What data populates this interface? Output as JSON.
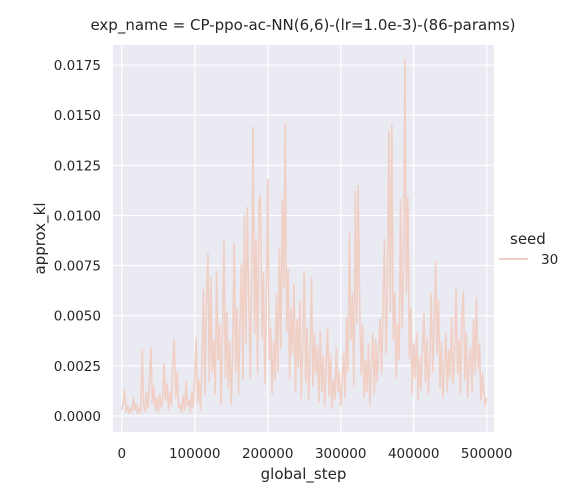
{
  "colors": {
    "plot_background": "#eaeaf2",
    "grid": "#ffffff",
    "series": "#f0cfc5",
    "text": "#262626"
  },
  "chart_data": {
    "type": "line",
    "title": "exp_name = CP-ppo-ac-NN(6,6)-(lr=1.0e-3)-(86-params)",
    "xlabel": "global_step",
    "ylabel": "approx_kl",
    "xlim": [
      -12000,
      510000
    ],
    "ylim": [
      -0.0008,
      0.0185
    ],
    "grid": true,
    "legend_placement": "right",
    "legend_title": "seed",
    "x_ticks": [
      0,
      100000,
      200000,
      300000,
      400000,
      500000
    ],
    "x_tick_labels": [
      "0",
      "100000",
      "200000",
      "300000",
      "400000",
      "500000"
    ],
    "y_ticks": [
      0,
      0.0025,
      0.005,
      0.0075,
      0.01,
      0.0125,
      0.015,
      0.0175
    ],
    "y_tick_labels": [
      "0.0000",
      "0.0025",
      "0.0050",
      "0.0075",
      "0.0100",
      "0.0125",
      "0.0150",
      "0.0175"
    ],
    "series": [
      {
        "name": "30",
        "color": "#f0cfc5",
        "points": [
          [
            0,
            0.0003
          ],
          [
            2000,
            0.0007
          ],
          [
            4000,
            0.0013
          ],
          [
            6000,
            0.0002
          ],
          [
            8000,
            0.0005
          ],
          [
            10000,
            0.0001
          ],
          [
            12000,
            0.0004
          ],
          [
            14000,
            0.0002
          ],
          [
            16000,
            0.0009
          ],
          [
            18000,
            0.0003
          ],
          [
            20000,
            0.0006
          ],
          [
            22000,
            0.0001
          ],
          [
            24000,
            0.0004
          ],
          [
            26000,
            0.0002
          ],
          [
            28000,
            0.0033
          ],
          [
            30000,
            0.0005
          ],
          [
            32000,
            0.0002
          ],
          [
            34000,
            0.0012
          ],
          [
            36000,
            0.0004
          ],
          [
            38000,
            0.0018
          ],
          [
            40000,
            0.0034
          ],
          [
            42000,
            0.0006
          ],
          [
            44000,
            0.0015
          ],
          [
            46000,
            0.0003
          ],
          [
            48000,
            0.0009
          ],
          [
            50000,
            0.0002
          ],
          [
            52000,
            0.0011
          ],
          [
            54000,
            0.0004
          ],
          [
            56000,
            0.0007
          ],
          [
            58000,
            0.0026
          ],
          [
            60000,
            0.0008
          ],
          [
            62000,
            0.0016
          ],
          [
            64000,
            0.0003
          ],
          [
            66000,
            0.0012
          ],
          [
            68000,
            0.0005
          ],
          [
            70000,
            0.0028
          ],
          [
            72000,
            0.0038
          ],
          [
            74000,
            0.0009
          ],
          [
            76000,
            0.0022
          ],
          [
            78000,
            0.0004
          ],
          [
            80000,
            0.0006
          ],
          [
            82000,
            0.0002
          ],
          [
            84000,
            0.001
          ],
          [
            86000,
            0.0003
          ],
          [
            88000,
            0.0017
          ],
          [
            90000,
            0.0005
          ],
          [
            92000,
            0.0008
          ],
          [
            94000,
            0.0002
          ],
          [
            96000,
            0.0012
          ],
          [
            98000,
            0.0004
          ],
          [
            100000,
            0.002
          ],
          [
            102000,
            0.0039
          ],
          [
            104000,
            0.0007
          ],
          [
            106000,
            0.0018
          ],
          [
            108000,
            0.0003
          ],
          [
            110000,
            0.0029
          ],
          [
            112000,
            0.0063
          ],
          [
            114000,
            0.0011
          ],
          [
            116000,
            0.0056
          ],
          [
            118000,
            0.0081
          ],
          [
            120000,
            0.0017
          ],
          [
            122000,
            0.0069
          ],
          [
            124000,
            0.0022
          ],
          [
            126000,
            0.0038
          ],
          [
            128000,
            0.0011
          ],
          [
            130000,
            0.0072
          ],
          [
            132000,
            0.0028
          ],
          [
            134000,
            0.0045
          ],
          [
            136000,
            0.0006
          ],
          [
            138000,
            0.0041
          ],
          [
            140000,
            0.0087
          ],
          [
            142000,
            0.0019
          ],
          [
            144000,
            0.0052
          ],
          [
            146000,
            0.0014
          ],
          [
            148000,
            0.0037
          ],
          [
            150000,
            0.0006
          ],
          [
            152000,
            0.0033
          ],
          [
            154000,
            0.0086
          ],
          [
            156000,
            0.0022
          ],
          [
            158000,
            0.0054
          ],
          [
            160000,
            0.0011
          ],
          [
            162000,
            0.0048
          ],
          [
            164000,
            0.0076
          ],
          [
            166000,
            0.0018
          ],
          [
            168000,
            0.01
          ],
          [
            170000,
            0.0036
          ],
          [
            172000,
            0.0104
          ],
          [
            174000,
            0.0062
          ],
          [
            176000,
            0.0019
          ],
          [
            178000,
            0.0068
          ],
          [
            180000,
            0.0144
          ],
          [
            182000,
            0.0041
          ],
          [
            184000,
            0.0088
          ],
          [
            186000,
            0.0021
          ],
          [
            188000,
            0.0107
          ],
          [
            190000,
            0.011
          ],
          [
            192000,
            0.0039
          ],
          [
            194000,
            0.0071
          ],
          [
            196000,
            0.0016
          ],
          [
            198000,
            0.0053
          ],
          [
            200000,
            0.0118
          ],
          [
            202000,
            0.0028
          ],
          [
            204000,
            0.0044
          ],
          [
            206000,
            0.0011
          ],
          [
            208000,
            0.0037
          ],
          [
            210000,
            0.0018
          ],
          [
            212000,
            0.0061
          ],
          [
            214000,
            0.0022
          ],
          [
            216000,
            0.0083
          ],
          [
            218000,
            0.0034
          ],
          [
            220000,
            0.0108
          ],
          [
            222000,
            0.0064
          ],
          [
            224000,
            0.0146
          ],
          [
            226000,
            0.0042
          ],
          [
            228000,
            0.0073
          ],
          [
            230000,
            0.0019
          ],
          [
            232000,
            0.0054
          ],
          [
            234000,
            0.0031
          ],
          [
            236000,
            0.0066
          ],
          [
            238000,
            0.0012
          ],
          [
            240000,
            0.0048
          ],
          [
            242000,
            0.0024
          ],
          [
            244000,
            0.0057
          ],
          [
            246000,
            0.0009
          ],
          [
            248000,
            0.0038
          ],
          [
            250000,
            0.0072
          ],
          [
            252000,
            0.0017
          ],
          [
            254000,
            0.0044
          ],
          [
            256000,
            0.0008
          ],
          [
            258000,
            0.0027
          ],
          [
            260000,
            0.0069
          ],
          [
            262000,
            0.0015
          ],
          [
            264000,
            0.0041
          ],
          [
            266000,
            0.0021
          ],
          [
            268000,
            0.0035
          ],
          [
            270000,
            0.0007
          ],
          [
            272000,
            0.0042
          ],
          [
            274000,
            0.0012
          ],
          [
            276000,
            0.003
          ],
          [
            278000,
            0.0005
          ],
          [
            280000,
            0.0026
          ],
          [
            282000,
            0.0044
          ],
          [
            284000,
            0.001
          ],
          [
            286000,
            0.0031
          ],
          [
            288000,
            0.0004
          ],
          [
            290000,
            0.0018
          ],
          [
            292000,
            0.0008
          ],
          [
            294000,
            0.0034
          ],
          [
            296000,
            0.0012
          ],
          [
            298000,
            0.0022
          ],
          [
            300000,
            0.0005
          ],
          [
            302000,
            0.0017
          ],
          [
            304000,
            0.0031
          ],
          [
            306000,
            0.0009
          ],
          [
            308000,
            0.0049
          ],
          [
            310000,
            0.0022
          ],
          [
            312000,
            0.0091
          ],
          [
            314000,
            0.0038
          ],
          [
            316000,
            0.0061
          ],
          [
            318000,
            0.0015
          ],
          [
            320000,
            0.0112
          ],
          [
            322000,
            0.0046
          ],
          [
            324000,
            0.0115
          ],
          [
            326000,
            0.0054
          ],
          [
            328000,
            0.0021
          ],
          [
            330000,
            0.0045
          ],
          [
            332000,
            0.0009
          ],
          [
            334000,
            0.0028
          ],
          [
            336000,
            0.0012
          ],
          [
            338000,
            0.0036
          ],
          [
            340000,
            0.0005
          ],
          [
            342000,
            0.0024
          ],
          [
            344000,
            0.0041
          ],
          [
            346000,
            0.0011
          ],
          [
            348000,
            0.0038
          ],
          [
            350000,
            0.0017
          ],
          [
            352000,
            0.0034
          ],
          [
            354000,
            0.0048
          ],
          [
            356000,
            0.0021
          ],
          [
            358000,
            0.0057
          ],
          [
            360000,
            0.0088
          ],
          [
            362000,
            0.0031
          ],
          [
            364000,
            0.0064
          ],
          [
            366000,
            0.0142
          ],
          [
            368000,
            0.0052
          ],
          [
            370000,
            0.0145
          ],
          [
            372000,
            0.0038
          ],
          [
            374000,
            0.0061
          ],
          [
            376000,
            0.0019
          ],
          [
            378000,
            0.0046
          ],
          [
            380000,
            0.0028
          ],
          [
            382000,
            0.0108
          ],
          [
            384000,
            0.0044
          ],
          [
            386000,
            0.0072
          ],
          [
            388000,
            0.0178
          ],
          [
            390000,
            0.0061
          ],
          [
            392000,
            0.0109
          ],
          [
            394000,
            0.0029
          ],
          [
            396000,
            0.0054
          ],
          [
            398000,
            0.0011
          ],
          [
            400000,
            0.0036
          ],
          [
            402000,
            0.0019
          ],
          [
            404000,
            0.0041
          ],
          [
            406000,
            0.0008
          ],
          [
            408000,
            0.0029
          ],
          [
            410000,
            0.0013
          ],
          [
            412000,
            0.0034
          ],
          [
            414000,
            0.0051
          ],
          [
            416000,
            0.0017
          ],
          [
            418000,
            0.0039
          ],
          [
            420000,
            0.0011
          ],
          [
            422000,
            0.0028
          ],
          [
            424000,
            0.0061
          ],
          [
            426000,
            0.0022
          ],
          [
            428000,
            0.0044
          ],
          [
            430000,
            0.0077
          ],
          [
            432000,
            0.0031
          ],
          [
            434000,
            0.0058
          ],
          [
            436000,
            0.0014
          ],
          [
            438000,
            0.0037
          ],
          [
            440000,
            0.0009
          ],
          [
            442000,
            0.0024
          ],
          [
            444000,
            0.0041
          ],
          [
            446000,
            0.0012
          ],
          [
            448000,
            0.0033
          ],
          [
            450000,
            0.0019
          ],
          [
            452000,
            0.0049
          ],
          [
            454000,
            0.0016
          ],
          [
            456000,
            0.0031
          ],
          [
            458000,
            0.0063
          ],
          [
            460000,
            0.0021
          ],
          [
            462000,
            0.0038
          ],
          [
            464000,
            0.0011
          ],
          [
            466000,
            0.0052
          ],
          [
            468000,
            0.0062
          ],
          [
            470000,
            0.0018
          ],
          [
            472000,
            0.0041
          ],
          [
            474000,
            0.0009
          ],
          [
            476000,
            0.0027
          ],
          [
            478000,
            0.0034
          ],
          [
            480000,
            0.0012
          ],
          [
            482000,
            0.0048
          ],
          [
            484000,
            0.0021
          ],
          [
            486000,
            0.0059
          ],
          [
            488000,
            0.0024
          ],
          [
            490000,
            0.0036
          ],
          [
            492000,
            0.0008
          ],
          [
            494000,
            0.0021
          ],
          [
            496000,
            0.0012
          ],
          [
            498000,
            0.0005
          ],
          [
            500000,
            0.0009
          ]
        ]
      }
    ]
  }
}
